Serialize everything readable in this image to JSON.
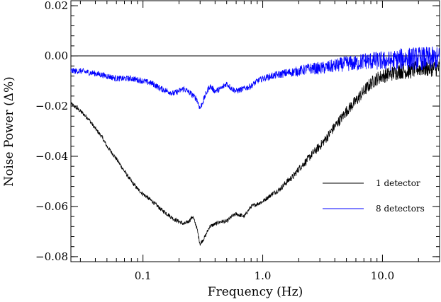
{
  "chart_data": {
    "type": "line",
    "xlabel": "Frequency (Hz)",
    "ylabel": "Noise Power (Δ%)",
    "x_scale": "log",
    "xlim": [
      0.025,
      30
    ],
    "ylim": [
      -0.082,
      0.022
    ],
    "x_ticks": [
      {
        "value": 0.1,
        "label": "0.1"
      },
      {
        "value": 1.0,
        "label": "1.0"
      },
      {
        "value": 10.0,
        "label": "10.0"
      }
    ],
    "y_ticks": [
      {
        "value": 0.02,
        "label": "0.02"
      },
      {
        "value": 0.0,
        "label": "0.00"
      },
      {
        "value": -0.02,
        "label": "−0.02"
      },
      {
        "value": -0.04,
        "label": "−0.04"
      },
      {
        "value": -0.06,
        "label": "−0.06"
      },
      {
        "value": -0.08,
        "label": "−0.08"
      }
    ],
    "reference_line": {
      "y": 0.0,
      "color": "#000000"
    },
    "legend_position": "right",
    "series": [
      {
        "name": "1 detector",
        "color": "#000000",
        "x": [
          0.025,
          0.03,
          0.035,
          0.04,
          0.045,
          0.05,
          0.06,
          0.07,
          0.08,
          0.09,
          0.1,
          0.12,
          0.14,
          0.16,
          0.18,
          0.2,
          0.22,
          0.24,
          0.26,
          0.28,
          0.3,
          0.33,
          0.36,
          0.4,
          0.45,
          0.5,
          0.55,
          0.6,
          0.7,
          0.8,
          0.9,
          1.0,
          1.2,
          1.4,
          1.6,
          1.8,
          2.0,
          2.3,
          2.6,
          3.0,
          3.5,
          4.0,
          4.5,
          5.0,
          6.0,
          7.0,
          8.0,
          9.0,
          10.0,
          12.0,
          14.0,
          17.0,
          20.0,
          25.0,
          30.0
        ],
        "y": [
          -0.019,
          -0.022,
          -0.025,
          -0.029,
          -0.032,
          -0.036,
          -0.041,
          -0.046,
          -0.05,
          -0.053,
          -0.055,
          -0.058,
          -0.061,
          -0.063,
          -0.065,
          -0.066,
          -0.067,
          -0.066,
          -0.064,
          -0.068,
          -0.075,
          -0.072,
          -0.068,
          -0.067,
          -0.066,
          -0.066,
          -0.064,
          -0.063,
          -0.064,
          -0.06,
          -0.059,
          -0.058,
          -0.055,
          -0.053,
          -0.05,
          -0.048,
          -0.045,
          -0.042,
          -0.039,
          -0.036,
          -0.032,
          -0.028,
          -0.025,
          -0.022,
          -0.018,
          -0.014,
          -0.011,
          -0.009,
          -0.008,
          -0.007,
          -0.006,
          -0.006,
          -0.005,
          -0.005,
          -0.005
        ]
      },
      {
        "name": "8 detectors",
        "color": "#0000ff",
        "x": [
          0.025,
          0.03,
          0.04,
          0.05,
          0.06,
          0.08,
          0.1,
          0.12,
          0.14,
          0.16,
          0.18,
          0.2,
          0.22,
          0.25,
          0.28,
          0.3,
          0.33,
          0.36,
          0.4,
          0.45,
          0.5,
          0.55,
          0.6,
          0.7,
          0.8,
          0.9,
          1.0,
          1.2,
          1.5,
          2.0,
          2.5,
          3.0,
          4.0,
          5.0,
          6.0,
          7.0,
          8.0,
          10.0,
          12.0,
          15.0,
          20.0,
          25.0,
          30.0
        ],
        "y": [
          -0.006,
          -0.006,
          -0.007,
          -0.008,
          -0.009,
          -0.009,
          -0.01,
          -0.011,
          -0.013,
          -0.014,
          -0.015,
          -0.014,
          -0.013,
          -0.015,
          -0.017,
          -0.021,
          -0.016,
          -0.012,
          -0.014,
          -0.013,
          -0.011,
          -0.013,
          -0.014,
          -0.013,
          -0.012,
          -0.01,
          -0.009,
          -0.008,
          -0.007,
          -0.006,
          -0.005,
          -0.005,
          -0.004,
          -0.003,
          -0.003,
          -0.002,
          -0.002,
          -0.002,
          -0.002,
          -0.001,
          -0.001,
          -0.001,
          -0.001
        ]
      }
    ]
  }
}
